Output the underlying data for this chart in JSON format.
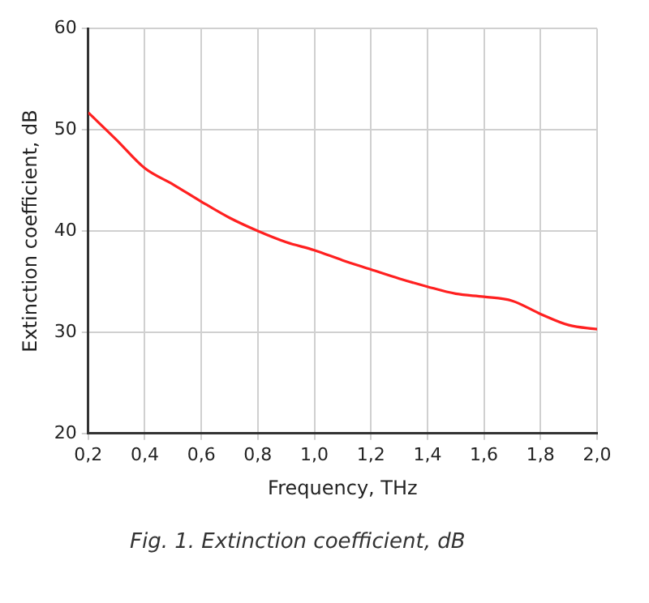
{
  "chart_data": {
    "type": "line",
    "xlabel": "Frequency, THz",
    "ylabel": "Extinction coefficient, dB",
    "annotations": [
      "Fig. 1. Extinction coefficient, dB"
    ],
    "x": [
      0.2,
      0.3,
      0.4,
      0.5,
      0.6,
      0.7,
      0.8,
      0.9,
      1.0,
      1.1,
      1.2,
      1.3,
      1.4,
      1.5,
      1.6,
      1.7,
      1.8,
      1.9,
      2.0
    ],
    "series": [
      {
        "color": "#ff2020",
        "values": [
          51.7,
          49.0,
          46.2,
          44.6,
          42.9,
          41.3,
          40.0,
          38.9,
          38.1,
          37.1,
          36.2,
          35.3,
          34.5,
          33.8,
          33.5,
          33.1,
          31.8,
          30.7,
          30.3
        ]
      }
    ],
    "xlim": [
      0.2,
      2.0
    ],
    "xticks": [
      {
        "value": 0.2,
        "label": "0,2"
      },
      {
        "value": 0.4,
        "label": "0,4"
      },
      {
        "value": 0.6,
        "label": "0,6"
      },
      {
        "value": 0.8,
        "label": "0,8"
      },
      {
        "value": 1.0,
        "label": "1,0"
      },
      {
        "value": 1.2,
        "label": "1,2"
      },
      {
        "value": 1.4,
        "label": "1,4"
      },
      {
        "value": 1.6,
        "label": "1,6"
      },
      {
        "value": 1.8,
        "label": "1,8"
      },
      {
        "value": 2.0,
        "label": "2,0"
      }
    ],
    "ylim": [
      20,
      60
    ],
    "yticks": [
      20,
      30,
      40,
      50,
      60
    ],
    "grid": true,
    "legend": false,
    "marker": "none",
    "line_style": "solid"
  }
}
